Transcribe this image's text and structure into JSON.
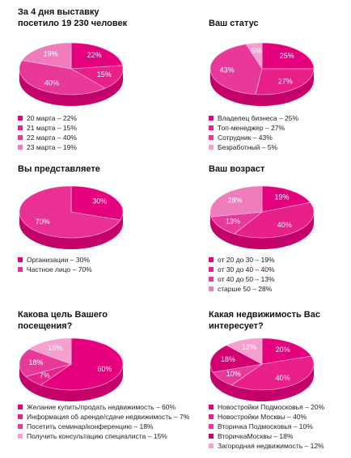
{
  "chart_data": [
    {
      "type": "pie",
      "title": "За 4 дня выставку посетило 19 230 человек",
      "categories": [
        "20 марта – 22%",
        "21 марта – 15%",
        "22 марта – 40%",
        "23 марта – 19%"
      ],
      "values": [
        22,
        15,
        40,
        19
      ],
      "value_labels": [
        "22%",
        "15%",
        "40%",
        "19%"
      ],
      "colors": [
        "#e5007d",
        "#e91f8a",
        "#e8399a",
        "#f07cbd"
      ]
    },
    {
      "type": "pie",
      "title": "Ваш статус",
      "categories": [
        "Владелец бизнеса – 25%",
        "Топ-менеджер – 27%",
        "Сотрудник – 43%",
        "Безработный – 5%"
      ],
      "values": [
        25,
        27,
        43,
        5
      ],
      "value_labels": [
        "25%",
        "27%",
        "43%",
        "5%"
      ],
      "colors": [
        "#e5007d",
        "#e91f8a",
        "#e8399a",
        "#f5a0cf"
      ]
    },
    {
      "type": "pie",
      "title": "Вы представляете",
      "categories": [
        "Организации – 30%",
        "Частное лицо – 70%"
      ],
      "values": [
        30,
        70
      ],
      "value_labels": [
        "30%",
        "70%"
      ],
      "colors": [
        "#e5007d",
        "#ea2f95"
      ]
    },
    {
      "type": "pie",
      "title": "Ваш возраст",
      "categories": [
        "от 20 до 30 – 19%",
        "от 30 до 40 – 40%",
        "от 40 до 50 – 13%",
        "старше 50 – 28%"
      ],
      "values": [
        19,
        40,
        13,
        28
      ],
      "value_labels": [
        "19%",
        "40%",
        "13%",
        "28%"
      ],
      "colors": [
        "#e5007d",
        "#e91f8a",
        "#e8399a",
        "#f07cbd"
      ]
    },
    {
      "type": "pie",
      "title": "Какова цель Вашего посещения?",
      "categories": [
        "Желание купить/продать недвижимость – 60%",
        "Информация об аренде/сдаче недвижимость – 7%",
        "Посетить семинар/конференцию – 18%",
        "Получить консультацию специалиста – 15%"
      ],
      "values": [
        60,
        7,
        18,
        15
      ],
      "value_labels": [
        "60%",
        "7%",
        "18%",
        "15%"
      ],
      "colors": [
        "#e5007d",
        "#e91f8a",
        "#e8399a",
        "#f5a0cf"
      ]
    },
    {
      "type": "pie",
      "title": "Какая недвижимость Вас интересует?",
      "categories": [
        "Новостройки Подмосковья – 20%",
        "Новостройки Москвы – 40%",
        "Вторичка Подмосковья – 10%",
        "ВторичкаМосквы – 18%",
        "Загородная недвижимость – 12%"
      ],
      "values": [
        20,
        40,
        10,
        18,
        12
      ],
      "value_labels": [
        "20%",
        "40%",
        "10%",
        "18%",
        "12%"
      ],
      "colors": [
        "#e5007d",
        "#e91f8a",
        "#e8399a",
        "#d3006f",
        "#f5a0cf"
      ]
    }
  ]
}
